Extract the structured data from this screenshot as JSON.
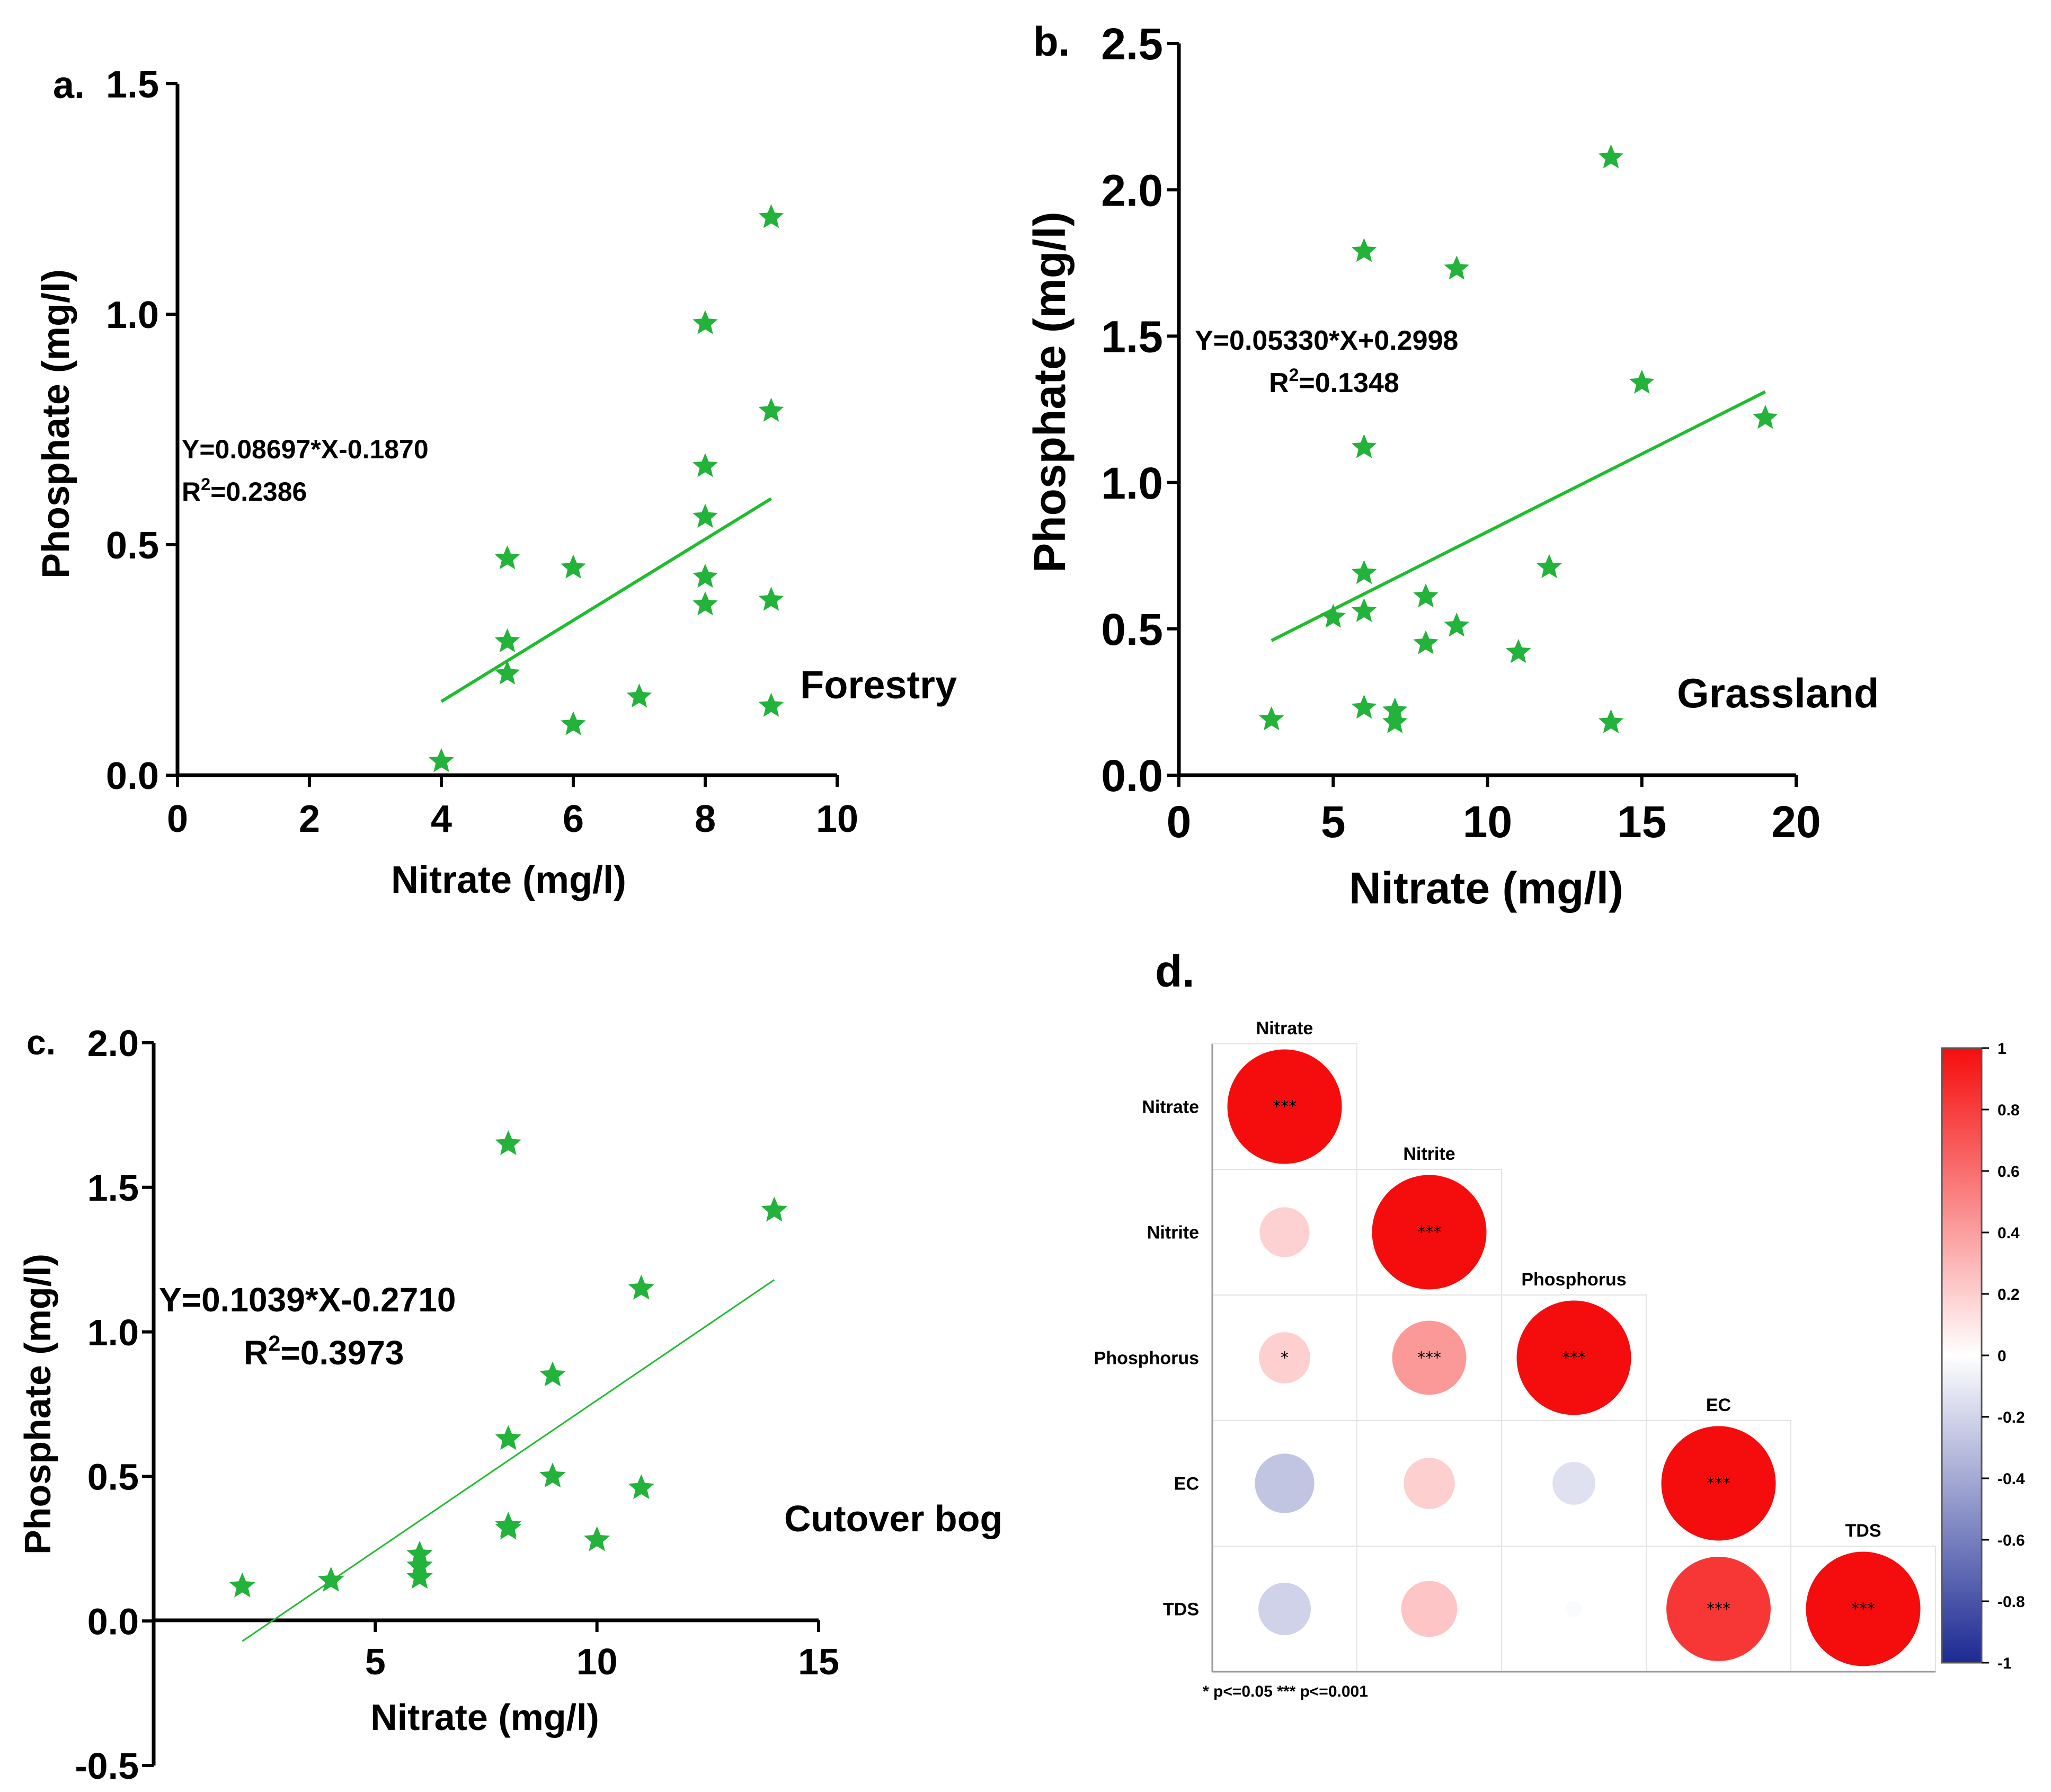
{
  "chart_data": [
    {
      "id": "a",
      "type": "scatter",
      "panel_label": "a.",
      "xlabel": "Nitrate (mg/l)",
      "ylabel": "Phosphate (mg/l)",
      "xlim": [
        0,
        10
      ],
      "ylim": [
        0,
        1.5
      ],
      "xticks": [
        "0",
        "2",
        "4",
        "6",
        "8",
        "10"
      ],
      "xtick_values": [
        0,
        2,
        4,
        6,
        8,
        10
      ],
      "yticks": [
        "0.0",
        "0.5",
        "1.0",
        "1.5"
      ],
      "ytick_values": [
        0,
        0.5,
        1.0,
        1.5
      ],
      "points": [
        [
          4,
          0.03
        ],
        [
          5,
          0.47
        ],
        [
          5,
          0.29
        ],
        [
          5,
          0.22
        ],
        [
          6,
          0.45
        ],
        [
          6,
          0.11
        ],
        [
          7,
          0.17
        ],
        [
          8,
          0.98
        ],
        [
          8,
          0.67
        ],
        [
          8,
          0.56
        ],
        [
          8,
          0.43
        ],
        [
          8,
          0.37
        ],
        [
          9,
          1.21
        ],
        [
          9,
          0.79
        ],
        [
          9,
          0.38
        ],
        [
          9,
          0.15
        ]
      ],
      "fit_line": [
        [
          4,
          0.16
        ],
        [
          9,
          0.6
        ]
      ],
      "equation": "Y=0.08697*X-0.1870",
      "r2_prefix": "R",
      "r2_sup": "2",
      "r2_value": "=0.2386",
      "group": "Forestry"
    },
    {
      "id": "b",
      "type": "scatter",
      "panel_label": "b.",
      "xlabel": "Nitrate (mg/l)",
      "ylabel": "Phosphate (mg/l)",
      "xlim": [
        0,
        20
      ],
      "ylim": [
        0,
        2.5
      ],
      "xticks": [
        "0",
        "5",
        "10",
        "15",
        "20"
      ],
      "xtick_values": [
        0,
        5,
        10,
        15,
        20
      ],
      "yticks": [
        "0.0",
        "0.5",
        "1.0",
        "1.5",
        "2.0",
        "2.5"
      ],
      "ytick_values": [
        0,
        0.5,
        1.0,
        1.5,
        2.0,
        2.5
      ],
      "points": [
        [
          3,
          0.19
        ],
        [
          5,
          0.54
        ],
        [
          6,
          1.79
        ],
        [
          6,
          1.12
        ],
        [
          6,
          0.69
        ],
        [
          6,
          0.56
        ],
        [
          6,
          0.23
        ],
        [
          7,
          0.22
        ],
        [
          7,
          0.18
        ],
        [
          8,
          0.61
        ],
        [
          8,
          0.45
        ],
        [
          9,
          1.73
        ],
        [
          9,
          0.51
        ],
        [
          11,
          0.42
        ],
        [
          12,
          0.71
        ],
        [
          14,
          2.11
        ],
        [
          14,
          0.18
        ],
        [
          15,
          1.34
        ],
        [
          19,
          1.22
        ]
      ],
      "fit_line": [
        [
          3,
          0.46
        ],
        [
          19,
          1.31
        ]
      ],
      "equation": "Y=0.05330*X+0.2998",
      "r2_prefix": "R",
      "r2_sup": "2",
      "r2_value": "=0.1348",
      "group": "Grassland"
    },
    {
      "id": "c",
      "type": "scatter",
      "panel_label": "c.",
      "xlabel": "Nitrate (mg/l)",
      "ylabel": "Phosphate (mg/l)",
      "xlim": [
        0,
        15
      ],
      "ylim": [
        -0.5,
        2.0
      ],
      "xticks": [
        "5",
        "10",
        "15"
      ],
      "xtick_values": [
        5,
        10,
        15
      ],
      "yticks": [
        "-0.5",
        "0.0",
        "0.5",
        "1.0",
        "1.5",
        "2.0"
      ],
      "ytick_values": [
        -0.5,
        0,
        0.5,
        1.0,
        1.5,
        2.0
      ],
      "points": [
        [
          2,
          0.12
        ],
        [
          4,
          0.14
        ],
        [
          6,
          0.23
        ],
        [
          6,
          0.19
        ],
        [
          6,
          0.15
        ],
        [
          8,
          1.65
        ],
        [
          8,
          0.63
        ],
        [
          8,
          0.33
        ],
        [
          8,
          0.32
        ],
        [
          9,
          0.85
        ],
        [
          9,
          0.5
        ],
        [
          10,
          0.28
        ],
        [
          11,
          1.15
        ],
        [
          11,
          0.46
        ],
        [
          14,
          1.42
        ]
      ],
      "fit_line": [
        [
          2,
          -0.07
        ],
        [
          14,
          1.18
        ]
      ],
      "equation": "Y=0.1039*X-0.2710",
      "r2_prefix": "R",
      "r2_sup": "2",
      "r2_value": "=0.3973",
      "group": "Cutover bog"
    },
    {
      "id": "d",
      "type": "heatmap",
      "panel_label": "d.",
      "variables": [
        "Nitrate",
        "Nitrite",
        "Phosphorus",
        "EC",
        "TDS"
      ],
      "matrix": [
        [
          1.0,
          null,
          null,
          null,
          null
        ],
        [
          0.19,
          1.0,
          null,
          null,
          null
        ],
        [
          0.2,
          0.42,
          1.0,
          null,
          null
        ],
        [
          -0.27,
          0.2,
          -0.14,
          1.0,
          null
        ],
        [
          -0.21,
          0.24,
          -0.02,
          0.83,
          1.0
        ]
      ],
      "significance": [
        [
          "***",
          null,
          null,
          null,
          null
        ],
        [
          "",
          "***",
          null,
          null,
          null
        ],
        [
          "*",
          "***",
          "***",
          null,
          null
        ],
        [
          "",
          "",
          "",
          "***",
          null
        ],
        [
          "",
          "",
          "",
          "***",
          "***"
        ]
      ],
      "colorbar_ticks": [
        "1",
        "0.8",
        "0.6",
        "0.4",
        "0.2",
        "0",
        "-0.2",
        "-0.4",
        "-0.6",
        "-0.8",
        "-1"
      ],
      "colorbar_values": [
        1,
        0.8,
        0.6,
        0.4,
        0.2,
        0,
        -0.2,
        -0.4,
        -0.6,
        -0.8,
        -1
      ],
      "colors": {
        "positive": "#f50d0d",
        "negative": "#1c2a93",
        "zero": "#ffffff"
      },
      "footnote": "* p<=0.05    *** p<=0.001"
    }
  ]
}
